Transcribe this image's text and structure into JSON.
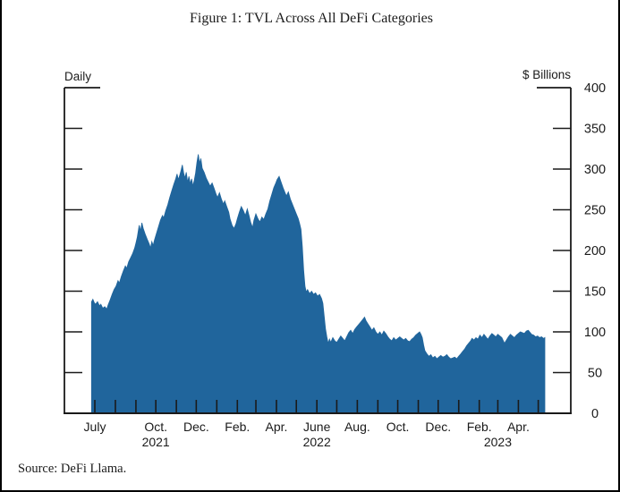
{
  "figure": {
    "title": "Figure 1: TVL Across All DeFi Categories",
    "source": "Source: DeFi Llama.",
    "frequency_label": "Daily",
    "unit_label": "$ Billions"
  },
  "colors": {
    "area_fill": "#20659c",
    "axis": "#1a1a1a"
  },
  "chart_data": {
    "type": "area",
    "title": "Figure 1: TVL Across All DeFi Categories",
    "xlabel": "",
    "ylabel": "$ Billions",
    "frequency": "Daily",
    "ylim": [
      0,
      400
    ],
    "yticks": [
      0,
      50,
      100,
      150,
      200,
      250,
      300,
      350,
      400
    ],
    "grid": false,
    "legend_position": "none",
    "x_axis": {
      "tick_unit": "month",
      "first_tick_month": "2021-07",
      "last_tick_month": "2023-05",
      "month_labels": [
        {
          "text": "July",
          "month": 0
        },
        {
          "text": "Oct.",
          "month": 3
        },
        {
          "text": "Dec.",
          "month": 5
        },
        {
          "text": "Feb.",
          "month": 7
        },
        {
          "text": "Apr.",
          "month": 9
        },
        {
          "text": "June",
          "month": 11
        },
        {
          "text": "Aug.",
          "month": 13
        },
        {
          "text": "Oct.",
          "month": 15
        },
        {
          "text": "Dec.",
          "month": 17
        },
        {
          "text": "Feb.",
          "month": 19
        },
        {
          "text": "Apr.",
          "month": 21
        }
      ],
      "year_labels": [
        {
          "text": "2021",
          "month": 3
        },
        {
          "text": "2022",
          "month": 11
        },
        {
          "text": "2023",
          "month": 20
        }
      ]
    },
    "series": [
      {
        "name": "Total value locked, all DeFi categories",
        "points": [
          [
            "2021-06-26",
            137
          ],
          [
            "2021-06-28",
            140
          ],
          [
            "2021-06-30",
            136
          ],
          [
            "2021-07-02",
            134
          ],
          [
            "2021-07-05",
            137
          ],
          [
            "2021-07-08",
            132
          ],
          [
            "2021-07-10",
            134
          ],
          [
            "2021-07-13",
            129
          ],
          [
            "2021-07-16",
            131
          ],
          [
            "2021-07-19",
            128
          ],
          [
            "2021-07-21",
            133
          ],
          [
            "2021-07-24",
            139
          ],
          [
            "2021-07-27",
            146
          ],
          [
            "2021-07-30",
            152
          ],
          [
            "2021-08-02",
            156
          ],
          [
            "2021-08-05",
            163
          ],
          [
            "2021-08-07",
            160
          ],
          [
            "2021-08-10",
            168
          ],
          [
            "2021-08-13",
            175
          ],
          [
            "2021-08-16",
            181
          ],
          [
            "2021-08-18",
            178
          ],
          [
            "2021-08-21",
            186
          ],
          [
            "2021-08-24",
            191
          ],
          [
            "2021-08-27",
            196
          ],
          [
            "2021-08-30",
            203
          ],
          [
            "2021-09-01",
            209
          ],
          [
            "2021-09-03",
            216
          ],
          [
            "2021-09-06",
            231
          ],
          [
            "2021-09-08",
            224
          ],
          [
            "2021-09-10",
            234
          ],
          [
            "2021-09-12",
            227
          ],
          [
            "2021-09-15",
            220
          ],
          [
            "2021-09-18",
            214
          ],
          [
            "2021-09-21",
            208
          ],
          [
            "2021-09-23",
            203
          ],
          [
            "2021-09-25",
            211
          ],
          [
            "2021-09-27",
            206
          ],
          [
            "2021-09-29",
            213
          ],
          [
            "2021-10-02",
            221
          ],
          [
            "2021-10-05",
            229
          ],
          [
            "2021-10-08",
            237
          ],
          [
            "2021-10-11",
            243
          ],
          [
            "2021-10-13",
            240
          ],
          [
            "2021-10-16",
            249
          ],
          [
            "2021-10-19",
            256
          ],
          [
            "2021-10-22",
            265
          ],
          [
            "2021-10-25",
            273
          ],
          [
            "2021-10-28",
            281
          ],
          [
            "2021-10-31",
            288
          ],
          [
            "2021-11-02",
            294
          ],
          [
            "2021-11-04",
            287
          ],
          [
            "2021-11-06",
            292
          ],
          [
            "2021-11-08",
            298
          ],
          [
            "2021-11-10",
            305
          ],
          [
            "2021-11-12",
            295
          ],
          [
            "2021-11-14",
            289
          ],
          [
            "2021-11-16",
            296
          ],
          [
            "2021-11-18",
            284
          ],
          [
            "2021-11-20",
            291
          ],
          [
            "2021-11-22",
            282
          ],
          [
            "2021-11-24",
            288
          ],
          [
            "2021-11-26",
            279
          ],
          [
            "2021-11-28",
            286
          ],
          [
            "2021-11-30",
            295
          ],
          [
            "2021-12-02",
            308
          ],
          [
            "2021-12-04",
            318
          ],
          [
            "2021-12-06",
            307
          ],
          [
            "2021-12-08",
            313
          ],
          [
            "2021-12-10",
            301
          ],
          [
            "2021-12-13",
            296
          ],
          [
            "2021-12-16",
            289
          ],
          [
            "2021-12-19",
            284
          ],
          [
            "2021-12-22",
            279
          ],
          [
            "2021-12-25",
            283
          ],
          [
            "2021-12-28",
            276
          ],
          [
            "2021-12-31",
            269
          ],
          [
            "2022-01-02",
            265
          ],
          [
            "2022-01-05",
            271
          ],
          [
            "2022-01-08",
            263
          ],
          [
            "2022-01-11",
            257
          ],
          [
            "2022-01-13",
            261
          ],
          [
            "2022-01-16",
            254
          ],
          [
            "2022-01-19",
            247
          ],
          [
            "2022-01-21",
            239
          ],
          [
            "2022-01-24",
            231
          ],
          [
            "2022-01-27",
            227
          ],
          [
            "2022-01-30",
            233
          ],
          [
            "2022-02-01",
            239
          ],
          [
            "2022-02-04",
            247
          ],
          [
            "2022-02-07",
            254
          ],
          [
            "2022-02-10",
            249
          ],
          [
            "2022-02-13",
            243
          ],
          [
            "2022-02-16",
            251
          ],
          [
            "2022-02-19",
            242
          ],
          [
            "2022-02-21",
            235
          ],
          [
            "2022-02-24",
            228
          ],
          [
            "2022-02-26",
            237
          ],
          [
            "2022-03-01",
            245
          ],
          [
            "2022-03-04",
            239
          ],
          [
            "2022-03-07",
            235
          ],
          [
            "2022-03-10",
            241
          ],
          [
            "2022-03-13",
            238
          ],
          [
            "2022-03-16",
            245
          ],
          [
            "2022-03-19",
            251
          ],
          [
            "2022-03-22",
            261
          ],
          [
            "2022-03-25",
            269
          ],
          [
            "2022-03-28",
            277
          ],
          [
            "2022-03-31",
            283
          ],
          [
            "2022-04-02",
            287
          ],
          [
            "2022-04-05",
            291
          ],
          [
            "2022-04-08",
            284
          ],
          [
            "2022-04-11",
            277
          ],
          [
            "2022-04-14",
            271
          ],
          [
            "2022-04-16",
            267
          ],
          [
            "2022-04-19",
            272
          ],
          [
            "2022-04-22",
            263
          ],
          [
            "2022-04-25",
            257
          ],
          [
            "2022-04-28",
            251
          ],
          [
            "2022-05-01",
            245
          ],
          [
            "2022-05-04",
            239
          ],
          [
            "2022-05-06",
            233
          ],
          [
            "2022-05-08",
            226
          ],
          [
            "2022-05-10",
            205
          ],
          [
            "2022-05-12",
            176
          ],
          [
            "2022-05-14",
            156
          ],
          [
            "2022-05-16",
            149
          ],
          [
            "2022-05-18",
            152
          ],
          [
            "2022-05-21",
            147
          ],
          [
            "2022-05-24",
            150
          ],
          [
            "2022-05-27",
            146
          ],
          [
            "2022-05-30",
            148
          ],
          [
            "2022-06-02",
            144
          ],
          [
            "2022-06-05",
            146
          ],
          [
            "2022-06-08",
            141
          ],
          [
            "2022-06-10",
            135
          ],
          [
            "2022-06-12",
            120
          ],
          [
            "2022-06-14",
            104
          ],
          [
            "2022-06-16",
            94
          ],
          [
            "2022-06-18",
            86
          ],
          [
            "2022-06-20",
            91
          ],
          [
            "2022-06-22",
            87
          ],
          [
            "2022-06-25",
            93
          ],
          [
            "2022-06-28",
            89
          ],
          [
            "2022-07-01",
            87
          ],
          [
            "2022-07-04",
            91
          ],
          [
            "2022-07-07",
            95
          ],
          [
            "2022-07-10",
            92
          ],
          [
            "2022-07-13",
            89
          ],
          [
            "2022-07-16",
            94
          ],
          [
            "2022-07-19",
            99
          ],
          [
            "2022-07-22",
            102
          ],
          [
            "2022-07-25",
            98
          ],
          [
            "2022-07-28",
            103
          ],
          [
            "2022-07-31",
            106
          ],
          [
            "2022-08-03",
            109
          ],
          [
            "2022-08-06",
            112
          ],
          [
            "2022-08-09",
            115
          ],
          [
            "2022-08-12",
            118
          ],
          [
            "2022-08-14",
            114
          ],
          [
            "2022-08-17",
            110
          ],
          [
            "2022-08-20",
            106
          ],
          [
            "2022-08-23",
            102
          ],
          [
            "2022-08-26",
            105
          ],
          [
            "2022-08-29",
            100
          ],
          [
            "2022-09-01",
            97
          ],
          [
            "2022-09-04",
            100
          ],
          [
            "2022-09-07",
            96
          ],
          [
            "2022-09-10",
            101
          ],
          [
            "2022-09-13",
            98
          ],
          [
            "2022-09-16",
            94
          ],
          [
            "2022-09-19",
            91
          ],
          [
            "2022-09-22",
            89
          ],
          [
            "2022-09-25",
            93
          ],
          [
            "2022-09-28",
            90
          ],
          [
            "2022-10-01",
            92
          ],
          [
            "2022-10-04",
            94
          ],
          [
            "2022-10-07",
            92
          ],
          [
            "2022-10-10",
            90
          ],
          [
            "2022-10-13",
            92
          ],
          [
            "2022-10-16",
            89
          ],
          [
            "2022-10-19",
            88
          ],
          [
            "2022-10-22",
            91
          ],
          [
            "2022-10-25",
            93
          ],
          [
            "2022-10-28",
            96
          ],
          [
            "2022-10-31",
            98
          ],
          [
            "2022-11-03",
            100
          ],
          [
            "2022-11-05",
            97
          ],
          [
            "2022-11-07",
            93
          ],
          [
            "2022-11-09",
            84
          ],
          [
            "2022-11-11",
            77
          ],
          [
            "2022-11-14",
            73
          ],
          [
            "2022-11-17",
            70
          ],
          [
            "2022-11-20",
            72
          ],
          [
            "2022-11-23",
            68
          ],
          [
            "2022-11-26",
            70
          ],
          [
            "2022-11-29",
            67
          ],
          [
            "2022-12-02",
            69
          ],
          [
            "2022-12-05",
            71
          ],
          [
            "2022-12-08",
            69
          ],
          [
            "2022-12-11",
            70
          ],
          [
            "2022-12-14",
            72
          ],
          [
            "2022-12-17",
            69
          ],
          [
            "2022-12-20",
            67
          ],
          [
            "2022-12-23",
            68
          ],
          [
            "2022-12-26",
            69
          ],
          [
            "2022-12-29",
            67
          ],
          [
            "2023-01-01",
            70
          ],
          [
            "2023-01-04",
            73
          ],
          [
            "2023-01-07",
            76
          ],
          [
            "2023-01-10",
            79
          ],
          [
            "2023-01-13",
            83
          ],
          [
            "2023-01-16",
            86
          ],
          [
            "2023-01-19",
            89
          ],
          [
            "2023-01-21",
            92
          ],
          [
            "2023-01-24",
            90
          ],
          [
            "2023-01-27",
            93
          ],
          [
            "2023-01-30",
            91
          ],
          [
            "2023-02-02",
            96
          ],
          [
            "2023-02-05",
            93
          ],
          [
            "2023-02-08",
            97
          ],
          [
            "2023-02-11",
            94
          ],
          [
            "2023-02-14",
            91
          ],
          [
            "2023-02-17",
            95
          ],
          [
            "2023-02-20",
            98
          ],
          [
            "2023-02-23",
            96
          ],
          [
            "2023-02-26",
            94
          ],
          [
            "2023-03-01",
            97
          ],
          [
            "2023-03-04",
            95
          ],
          [
            "2023-03-07",
            93
          ],
          [
            "2023-03-11",
            86
          ],
          [
            "2023-03-14",
            90
          ],
          [
            "2023-03-17",
            94
          ],
          [
            "2023-03-20",
            97
          ],
          [
            "2023-03-23",
            95
          ],
          [
            "2023-03-26",
            93
          ],
          [
            "2023-03-29",
            96
          ],
          [
            "2023-04-01",
            98
          ],
          [
            "2023-04-04",
            100
          ],
          [
            "2023-04-07",
            99
          ],
          [
            "2023-04-10",
            98
          ],
          [
            "2023-04-13",
            101
          ],
          [
            "2023-04-16",
            102
          ],
          [
            "2023-04-19",
            99
          ],
          [
            "2023-04-21",
            97
          ],
          [
            "2023-04-24",
            96
          ],
          [
            "2023-04-27",
            94
          ],
          [
            "2023-04-30",
            95
          ],
          [
            "2023-05-03",
            93
          ],
          [
            "2023-05-06",
            94
          ],
          [
            "2023-05-09",
            92
          ],
          [
            "2023-05-11",
            93
          ]
        ]
      }
    ]
  }
}
